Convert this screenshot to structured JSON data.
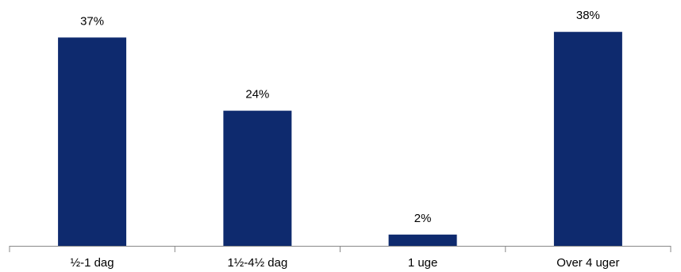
{
  "chart_data": {
    "type": "bar",
    "title": "",
    "xlabel": "",
    "ylabel": "",
    "categories": [
      "½-1 dag",
      "1½-4½ dag",
      "1 uge",
      "Over 4 uger"
    ],
    "values": [
      37,
      24,
      2,
      38
    ],
    "value_labels": [
      "37%",
      "24%",
      "2%",
      "38%"
    ],
    "unit": "%",
    "ylim": [
      0,
      40
    ],
    "grid": false,
    "legend": "none",
    "colors": {
      "bar": "#0E2A6E",
      "axis": "#888888",
      "text": "#000000",
      "background": "#FFFFFF"
    }
  }
}
